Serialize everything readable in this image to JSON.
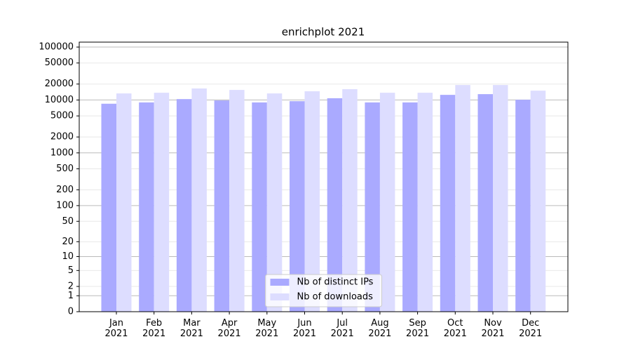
{
  "chart_data": {
    "type": "bar",
    "title": "enrichplot 2021",
    "scale": "log1p",
    "grid": true,
    "legend": "lower center",
    "categories": [
      "Jan\n2021",
      "Feb\n2021",
      "Mar\n2021",
      "Apr\n2021",
      "May\n2021",
      "Jun\n2021",
      "Jul\n2021",
      "Aug\n2021",
      "Sep\n2021",
      "Oct\n2021",
      "Nov\n2021",
      "Dec\n2021"
    ],
    "series": [
      {
        "name": "Nb of distinct IPs",
        "color": "#aaaaff",
        "values": [
          8500,
          9000,
          10400,
          9800,
          9000,
          9500,
          10800,
          9000,
          9000,
          12500,
          12900,
          10100
        ]
      },
      {
        "name": "Nb of downloads",
        "color": "#ddddff",
        "values": [
          13300,
          13700,
          16500,
          15500,
          13300,
          14600,
          16000,
          13700,
          13700,
          19200,
          19200,
          15000
        ]
      }
    ],
    "ylim": [
      0,
      124000
    ],
    "yticks": [
      0,
      1,
      2,
      5,
      10,
      20,
      50,
      100,
      200,
      500,
      1000,
      2000,
      5000,
      10000,
      20000,
      50000,
      100000
    ]
  }
}
